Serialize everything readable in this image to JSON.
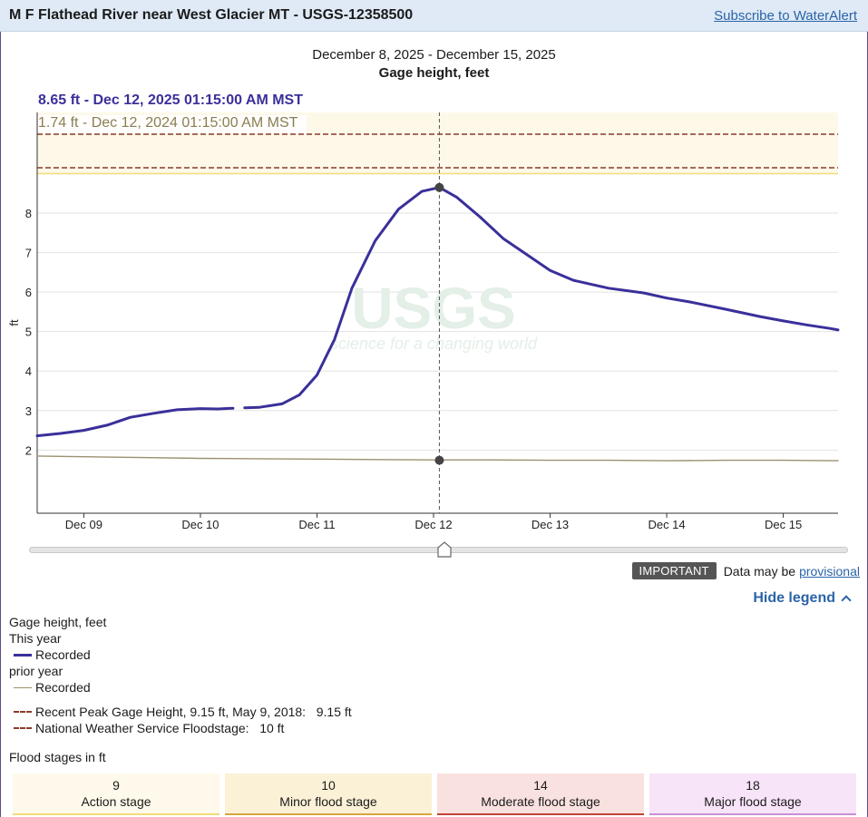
{
  "header": {
    "title": "M F Flathead River near West Glacier MT - USGS-12358500",
    "subscribe_label": "Subscribe to WaterAlert"
  },
  "chart_data": {
    "type": "line",
    "title": "December 8, 2025 - December 15, 2025",
    "subtitle": "Gage height, feet",
    "ylabel": "ft",
    "xlabel": "",
    "x_ticks": [
      "Dec 09",
      "Dec 10",
      "Dec 11",
      "Dec 12",
      "Dec 13",
      "Dec 14",
      "Dec 15"
    ],
    "y_ticks": [
      2,
      3,
      4,
      5,
      6,
      7,
      8
    ],
    "ylim": [
      0.4,
      10.55
    ],
    "xlim_days": [
      8.6,
      15.47
    ],
    "grid": true,
    "watermark": {
      "logo": "USGS",
      "tagline": "science for a changing world"
    },
    "tooltip": {
      "current": "8.65 ft - Dec 12, 2025 01:15:00 AM MST",
      "prior": "1.74 ft - Dec 12, 2024 01:15:00 AM MST",
      "x_day": 12.05,
      "current_value": 8.65,
      "prior_value": 1.74
    },
    "thresholds": [
      {
        "name": "Recent Peak Gage Height",
        "value": 9.15,
        "style": "dashed",
        "color": "#8a3a2a"
      },
      {
        "name": "Action stage",
        "value": 9,
        "style": "solid",
        "color": "#f0dc7a"
      },
      {
        "name": "National Weather Service Floodstage",
        "value": 10,
        "style": "dashed",
        "color": "#8a3a2a"
      }
    ],
    "series": [
      {
        "name": "This year",
        "color": "#3a309a",
        "segments": [
          [
            [
              8.6,
              2.36
            ],
            [
              8.8,
              2.42
            ],
            [
              9.0,
              2.5
            ],
            [
              9.2,
              2.63
            ],
            [
              9.4,
              2.83
            ],
            [
              9.6,
              2.93
            ],
            [
              9.8,
              3.02
            ],
            [
              10.0,
              3.05
            ],
            [
              10.15,
              3.04
            ],
            [
              10.28,
              3.06
            ]
          ],
          [
            [
              10.38,
              3.07
            ],
            [
              10.5,
              3.08
            ],
            [
              10.7,
              3.17
            ],
            [
              10.85,
              3.4
            ],
            [
              11.0,
              3.9
            ],
            [
              11.15,
              4.8
            ],
            [
              11.3,
              6.1
            ],
            [
              11.5,
              7.3
            ],
            [
              11.7,
              8.1
            ],
            [
              11.9,
              8.55
            ],
            [
              12.05,
              8.65
            ],
            [
              12.2,
              8.4
            ],
            [
              12.4,
              7.9
            ],
            [
              12.6,
              7.35
            ],
            [
              12.8,
              6.95
            ],
            [
              13.0,
              6.55
            ],
            [
              13.2,
              6.3
            ],
            [
              13.5,
              6.1
            ],
            [
              13.8,
              5.98
            ],
            [
              14.0,
              5.85
            ],
            [
              14.2,
              5.75
            ],
            [
              14.5,
              5.57
            ],
            [
              14.8,
              5.38
            ],
            [
              15.0,
              5.27
            ],
            [
              15.2,
              5.17
            ],
            [
              15.4,
              5.08
            ],
            [
              15.47,
              5.04
            ]
          ]
        ]
      },
      {
        "name": "prior year",
        "color": "#9c9170",
        "segments": [
          [
            [
              8.6,
              1.85
            ],
            [
              9.0,
              1.83
            ],
            [
              9.5,
              1.81
            ],
            [
              10.0,
              1.79
            ],
            [
              10.5,
              1.78
            ],
            [
              11.0,
              1.77
            ],
            [
              11.5,
              1.76
            ],
            [
              12.0,
              1.75
            ],
            [
              12.5,
              1.75
            ],
            [
              13.0,
              1.74
            ],
            [
              13.5,
              1.74
            ],
            [
              14.0,
              1.73
            ],
            [
              14.5,
              1.74
            ],
            [
              15.0,
              1.74
            ],
            [
              15.47,
              1.73
            ]
          ]
        ]
      }
    ]
  },
  "important": {
    "badge": "IMPORTANT",
    "text": "Data may be",
    "link": "provisional"
  },
  "legend": {
    "toggle_label": "Hide legend",
    "param_label": "Gage height, feet",
    "this_year_label": "This year",
    "recorded_label": "Recorded",
    "prior_year_label": "prior year",
    "prior_recorded_label": "Recorded",
    "peak_label": "Recent Peak Gage Height, 9.15 ft, May 9, 2018:   9.15 ft",
    "nws_label": "National Weather Service Floodstage:   10 ft"
  },
  "flood_stages": {
    "title": "Flood stages in ft",
    "stages": [
      {
        "value": "9",
        "label": "Action stage",
        "color": "#f0dc7a"
      },
      {
        "value": "10",
        "label": "Minor flood stage",
        "color": "#d6a640"
      },
      {
        "value": "14",
        "label": "Moderate flood stage",
        "color": "#c0443a"
      },
      {
        "value": "18",
        "label": "Major flood stage",
        "color": "#c890d6"
      }
    ]
  }
}
